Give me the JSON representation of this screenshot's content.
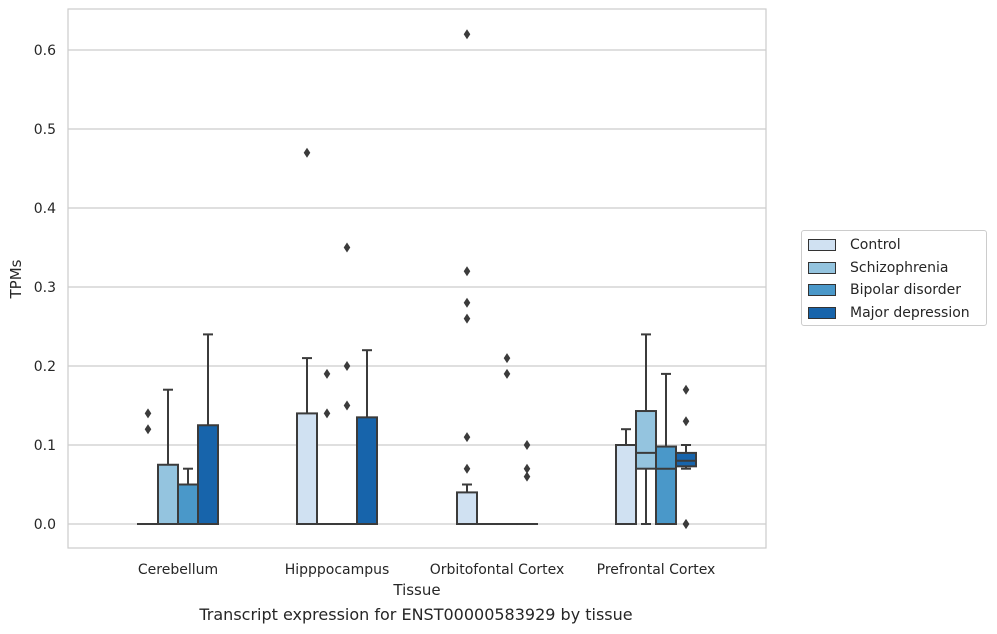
{
  "chart_data": {
    "type": "box",
    "title": "Transcript expression for ENST00000583929 by tissue",
    "xlabel": "Tissue",
    "ylabel": "TPMs",
    "ylim": [
      -0.03,
      0.655
    ],
    "yticks": [
      0.0,
      0.1,
      0.2,
      0.3,
      0.4,
      0.5,
      0.6
    ],
    "ytick_labels": [
      "0.0",
      "0.1",
      "0.2",
      "0.3",
      "0.4",
      "0.5",
      "0.6"
    ],
    "grid": "horizontal",
    "legend_position": "right",
    "categories": [
      "Cerebellum",
      "Hipppocampus",
      "Orbitofontal Cortex",
      "Prefrontal Cortex"
    ],
    "series": [
      {
        "name": "Control",
        "color": "#d0e1f2",
        "boxes": [
          {
            "category": "Cerebellum",
            "q1": 0.0,
            "median": 0.0,
            "q3": 0.0,
            "whisker_low": 0.0,
            "whisker_high": 0.0,
            "outliers": [
              0.12,
              0.14
            ]
          },
          {
            "category": "Hipppocampus",
            "q1": 0.0,
            "median": 0.0,
            "q3": 0.14,
            "whisker_low": 0.0,
            "whisker_high": 0.21,
            "outliers": [
              0.47
            ]
          },
          {
            "category": "Orbitofontal Cortex",
            "q1": 0.0,
            "median": 0.0,
            "q3": 0.04,
            "whisker_low": 0.0,
            "whisker_high": 0.05,
            "outliers": [
              0.11,
              0.07,
              0.26,
              0.28,
              0.32,
              0.62
            ]
          },
          {
            "category": "Prefrontal Cortex",
            "q1": 0.0,
            "median": 0.0,
            "q3": 0.1,
            "whisker_low": 0.0,
            "whisker_high": 0.12,
            "outliers": []
          }
        ]
      },
      {
        "name": "Schizophrenia",
        "color": "#94c4df",
        "boxes": [
          {
            "category": "Cerebellum",
            "q1": 0.0,
            "median": 0.0,
            "q3": 0.075,
            "whisker_low": 0.0,
            "whisker_high": 0.17,
            "outliers": []
          },
          {
            "category": "Hipppocampus",
            "q1": 0.0,
            "median": 0.0,
            "q3": 0.0,
            "whisker_low": 0.0,
            "whisker_high": 0.0,
            "outliers": [
              0.14,
              0.19
            ]
          },
          {
            "category": "Orbitofontal Cortex",
            "q1": 0.0,
            "median": 0.0,
            "q3": 0.0,
            "whisker_low": 0.0,
            "whisker_high": 0.0,
            "outliers": []
          },
          {
            "category": "Prefrontal Cortex",
            "q1": 0.07,
            "median": 0.09,
            "q3": 0.143,
            "whisker_low": 0.0,
            "whisker_high": 0.24,
            "outliers": []
          }
        ]
      },
      {
        "name": "Bipolar disorder",
        "color": "#4a98c9",
        "boxes": [
          {
            "category": "Cerebellum",
            "q1": 0.0,
            "median": 0.0,
            "q3": 0.05,
            "whisker_low": 0.0,
            "whisker_high": 0.07,
            "outliers": []
          },
          {
            "category": "Hipppocampus",
            "q1": 0.0,
            "median": 0.0,
            "q3": 0.0,
            "whisker_low": 0.0,
            "whisker_high": 0.0,
            "outliers": [
              0.15,
              0.2,
              0.35
            ]
          },
          {
            "category": "Orbitofontal Cortex",
            "q1": 0.0,
            "median": 0.0,
            "q3": 0.0,
            "whisker_low": 0.0,
            "whisker_high": 0.0,
            "outliers": [
              0.19,
              0.21
            ]
          },
          {
            "category": "Prefrontal Cortex",
            "q1": 0.0,
            "median": 0.07,
            "q3": 0.098,
            "whisker_low": 0.0,
            "whisker_high": 0.19,
            "outliers": []
          }
        ]
      },
      {
        "name": "Major depression",
        "color": "#1764ab",
        "boxes": [
          {
            "category": "Cerebellum",
            "q1": 0.0,
            "median": 0.0,
            "q3": 0.125,
            "whisker_low": 0.0,
            "whisker_high": 0.24,
            "outliers": []
          },
          {
            "category": "Hipppocampus",
            "q1": 0.0,
            "median": 0.0,
            "q3": 0.135,
            "whisker_low": 0.0,
            "whisker_high": 0.22,
            "outliers": []
          },
          {
            "category": "Orbitofontal Cortex",
            "q1": 0.0,
            "median": 0.0,
            "q3": 0.0,
            "whisker_low": 0.0,
            "whisker_high": 0.0,
            "outliers": [
              0.06,
              0.07,
              0.1
            ]
          },
          {
            "category": "Prefrontal Cortex",
            "q1": 0.073,
            "median": 0.08,
            "q3": 0.09,
            "whisker_low": 0.07,
            "whisker_high": 0.1,
            "outliers": [
              0.0,
              0.0,
              0.13,
              0.17
            ]
          }
        ]
      }
    ]
  }
}
